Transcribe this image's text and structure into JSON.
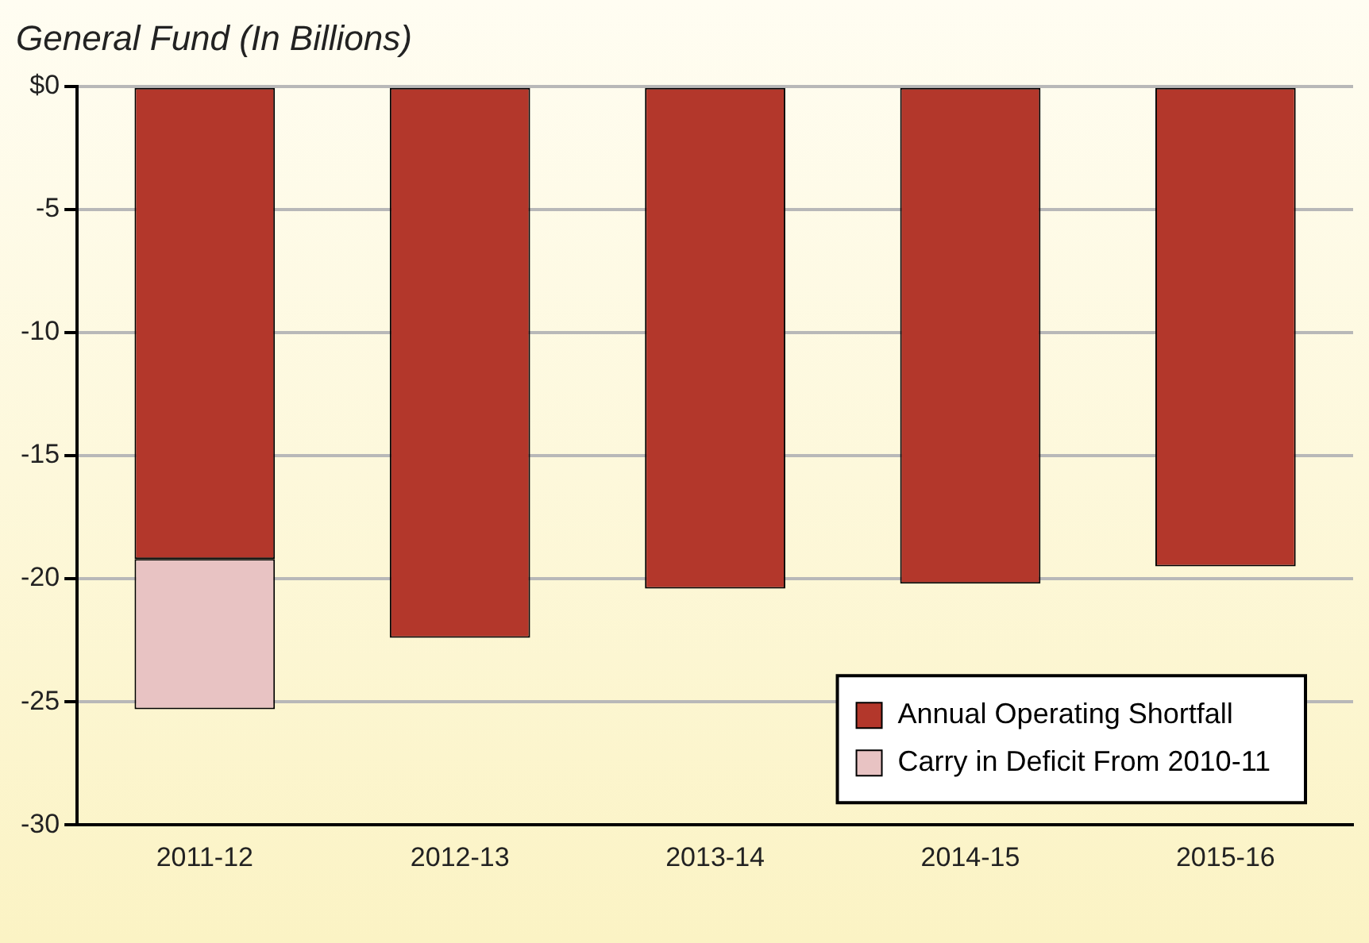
{
  "chart_data": {
    "type": "bar",
    "title": "General Fund (In Billions)",
    "stacked": true,
    "categories": [
      "2011-12",
      "2012-13",
      "2013-14",
      "2014-15",
      "2015-16"
    ],
    "series": [
      {
        "name": "Annual Operating Shortfall",
        "color": "#b3372b",
        "values": [
          -19.2,
          -22.4,
          -20.4,
          -20.2,
          -19.5
        ]
      },
      {
        "name": "Carry in Deficit From 2010-11",
        "color": "#e8c3c3",
        "values": [
          -6.1,
          null,
          null,
          null,
          null
        ]
      }
    ],
    "ylim": [
      -30,
      0
    ],
    "yticks": [
      {
        "value": 0,
        "label": "$0"
      },
      -5,
      -10,
      -15,
      -20,
      -25,
      -30
    ],
    "grid": "y",
    "legend": "bottom right"
  }
}
